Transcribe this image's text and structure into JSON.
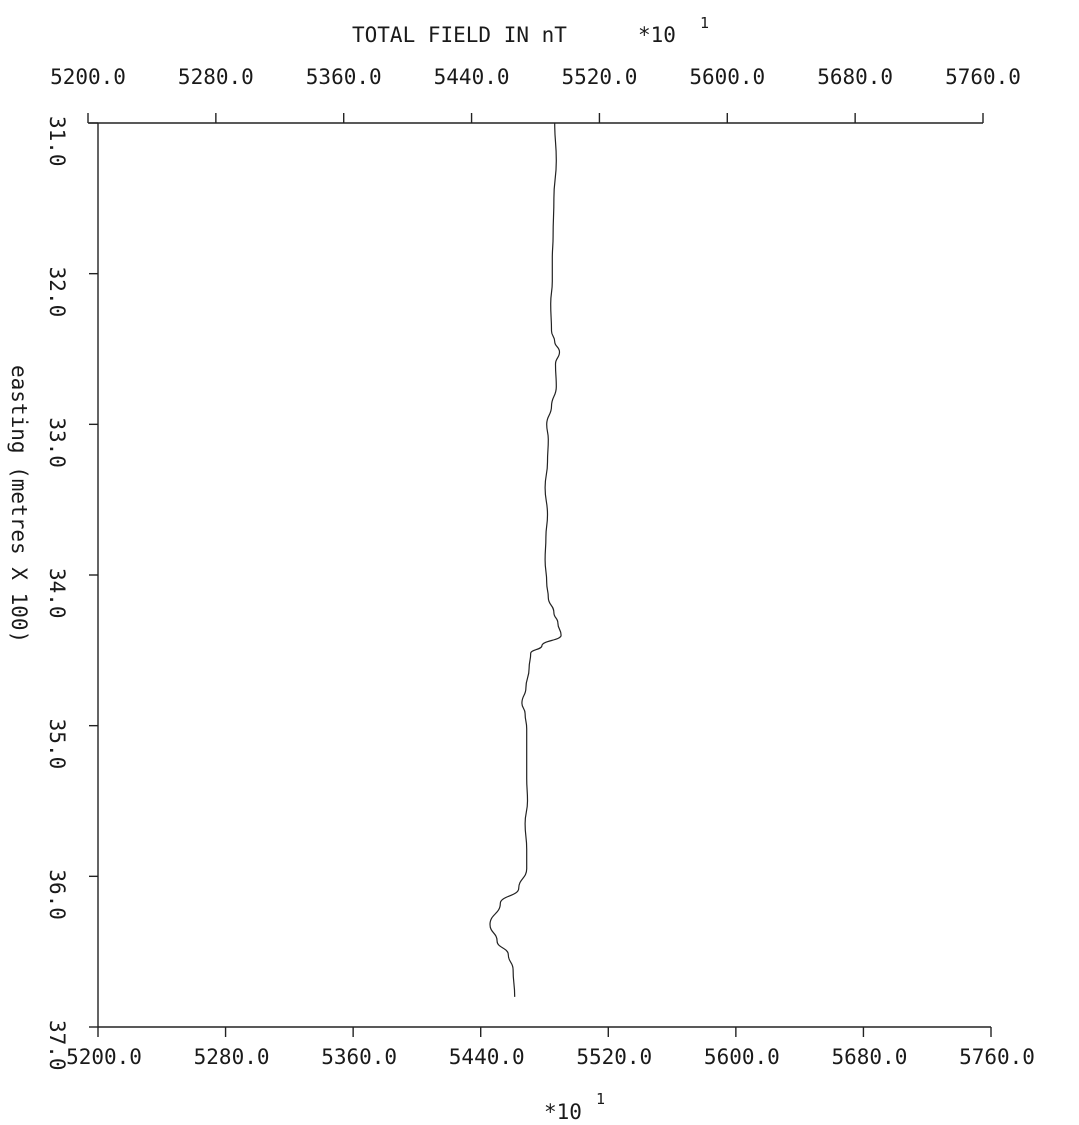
{
  "chart_data": {
    "type": "line",
    "title": "TOTAL FIELD IN nT",
    "title_multiplier": "*10",
    "multiplier_exponent": "1",
    "xlabel_multiplier": "*10",
    "ylabel": "easting (metres X 100)",
    "xlim": [
      5200.0,
      5760.0
    ],
    "ylim": [
      31.0,
      37.0
    ],
    "y_inverted": true,
    "grid": false,
    "x_ticks": [
      "5200.0",
      "5280.0",
      "5360.0",
      "5440.0",
      "5520.0",
      "5600.0",
      "5680.0",
      "5760.0"
    ],
    "y_ticks": [
      "31.0",
      "32.0",
      "33.0",
      "34.0",
      "35.0",
      "36.0",
      "37.0"
    ],
    "line_color": "#222222",
    "series": [
      {
        "x": [
          5492.0,
          5493.0,
          5491.5,
          5491.0,
          5490.5,
          5490.5,
          5489.5,
          5490.0,
          5492.0,
          5495.0,
          5492.5,
          5493.0,
          5490.0,
          5487.0,
          5488.0,
          5487.5,
          5486.0,
          5487.5,
          5486.5,
          5486.0,
          5487.0,
          5488.0,
          5491.5,
          5494.0,
          5496.0,
          5484.0,
          5477.0,
          5476.0,
          5474.0,
          5471.5,
          5473.5,
          5474.5,
          5474.5,
          5474.5,
          5475.0,
          5473.5,
          5474.5,
          5474.5,
          5469.5,
          5458.0,
          5451.5,
          5456.0,
          5463.0,
          5466.0,
          5467.0
        ],
        "y": [
          31.0,
          31.25,
          31.5,
          31.75,
          31.9,
          32.05,
          32.2,
          32.38,
          32.45,
          32.52,
          32.6,
          32.75,
          32.88,
          33.0,
          33.1,
          33.25,
          33.42,
          33.6,
          33.75,
          33.9,
          34.05,
          34.15,
          34.25,
          34.32,
          34.4,
          34.47,
          34.52,
          34.62,
          34.75,
          34.85,
          34.92,
          35.02,
          35.15,
          35.35,
          35.5,
          35.65,
          35.82,
          35.95,
          36.08,
          36.18,
          36.32,
          36.43,
          36.52,
          36.62,
          36.8
        ]
      }
    ]
  }
}
